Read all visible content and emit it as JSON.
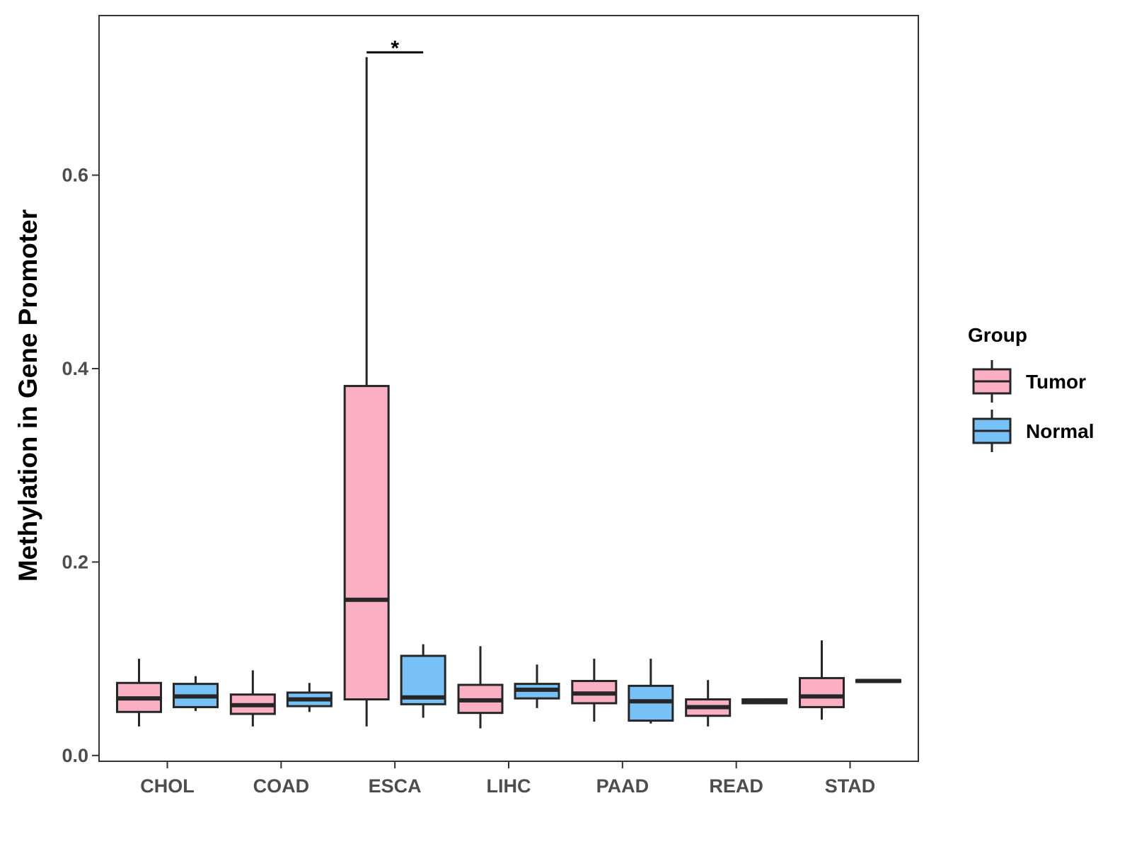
{
  "chart_data": {
    "type": "boxplot",
    "title": "",
    "xlabel": "",
    "ylabel": "Methylation in Gene Promoter",
    "ylim": [
      -0.006,
      0.765
    ],
    "yticks": [
      0.0,
      0.2,
      0.4,
      0.6
    ],
    "ytick_labels": [
      "0.0",
      "0.2",
      "0.4",
      "0.6"
    ],
    "grid": false,
    "categories": [
      "CHOL",
      "COAD",
      "ESCA",
      "LIHC",
      "PAAD",
      "READ",
      "STAD"
    ],
    "legend": {
      "title": "Group",
      "placement": "right",
      "entries": [
        {
          "name": "Tumor",
          "color": "#FBAFC2"
        },
        {
          "name": "Normal",
          "color": "#78C1F7"
        }
      ]
    },
    "series": [
      {
        "name": "Tumor",
        "color": "#FBAFC2",
        "boxes": [
          {
            "category": "CHOL",
            "min": 0.03,
            "q1": 0.045,
            "median": 0.059,
            "q3": 0.075,
            "max": 0.1
          },
          {
            "category": "COAD",
            "min": 0.03,
            "q1": 0.043,
            "median": 0.052,
            "q3": 0.063,
            "max": 0.088
          },
          {
            "category": "ESCA",
            "min": 0.03,
            "q1": 0.058,
            "median": 0.161,
            "q3": 0.382,
            "max": 0.722
          },
          {
            "category": "LIHC",
            "min": 0.028,
            "q1": 0.044,
            "median": 0.057,
            "q3": 0.073,
            "max": 0.113
          },
          {
            "category": "PAAD",
            "min": 0.035,
            "q1": 0.054,
            "median": 0.064,
            "q3": 0.077,
            "max": 0.1
          },
          {
            "category": "READ",
            "min": 0.03,
            "q1": 0.041,
            "median": 0.05,
            "q3": 0.058,
            "max": 0.078
          },
          {
            "category": "STAD",
            "min": 0.037,
            "q1": 0.05,
            "median": 0.061,
            "q3": 0.08,
            "max": 0.119
          }
        ]
      },
      {
        "name": "Normal",
        "color": "#78C1F7",
        "boxes": [
          {
            "category": "CHOL",
            "min": 0.046,
            "q1": 0.05,
            "median": 0.061,
            "q3": 0.074,
            "max": 0.082
          },
          {
            "category": "COAD",
            "min": 0.045,
            "q1": 0.051,
            "median": 0.058,
            "q3": 0.065,
            "max": 0.075
          },
          {
            "category": "ESCA",
            "min": 0.039,
            "q1": 0.053,
            "median": 0.06,
            "q3": 0.103,
            "max": 0.115
          },
          {
            "category": "LIHC",
            "min": 0.049,
            "q1": 0.059,
            "median": 0.068,
            "q3": 0.074,
            "max": 0.094
          },
          {
            "category": "PAAD",
            "min": 0.033,
            "q1": 0.036,
            "median": 0.056,
            "q3": 0.072,
            "max": 0.1
          },
          {
            "category": "READ",
            "min": 0.054,
            "q1": 0.054,
            "median": 0.056,
            "q3": 0.058,
            "max": 0.059
          },
          {
            "category": "STAD",
            "min": 0.076,
            "q1": 0.076,
            "median": 0.077,
            "q3": 0.078,
            "max": 0.078
          }
        ]
      }
    ],
    "annotations": [
      {
        "type": "significance",
        "category": "ESCA",
        "label": "*",
        "y": 0.727
      }
    ]
  }
}
